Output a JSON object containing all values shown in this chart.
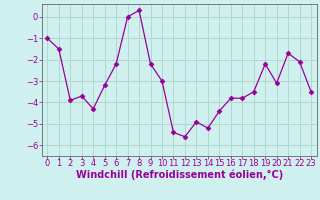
{
  "x": [
    0,
    1,
    2,
    3,
    4,
    5,
    6,
    7,
    8,
    9,
    10,
    11,
    12,
    13,
    14,
    15,
    16,
    17,
    18,
    19,
    20,
    21,
    22,
    23
  ],
  "y": [
    -1.0,
    -1.5,
    -3.9,
    -3.7,
    -4.3,
    -3.2,
    -2.2,
    0.0,
    0.3,
    -2.2,
    -3.0,
    -5.4,
    -5.6,
    -4.9,
    -5.2,
    -4.4,
    -3.8,
    -3.8,
    -3.5,
    -2.2,
    -3.1,
    -1.7,
    -2.1,
    -3.5
  ],
  "line_color": "#990099",
  "marker": "D",
  "marker_size": 2.5,
  "bg_color": "#d0f0f0",
  "grid_color": "#b0d8cc",
  "xlabel": "Windchill (Refroidissement éolien,°C)",
  "xlabel_fontsize": 7,
  "tick_fontsize": 6,
  "ylim": [
    -6.5,
    0.6
  ],
  "xlim": [
    -0.5,
    23.5
  ],
  "yticks": [
    0,
    -1,
    -2,
    -3,
    -4,
    -5,
    -6
  ],
  "xticks": [
    0,
    1,
    2,
    3,
    4,
    5,
    6,
    7,
    8,
    9,
    10,
    11,
    12,
    13,
    14,
    15,
    16,
    17,
    18,
    19,
    20,
    21,
    22,
    23
  ]
}
